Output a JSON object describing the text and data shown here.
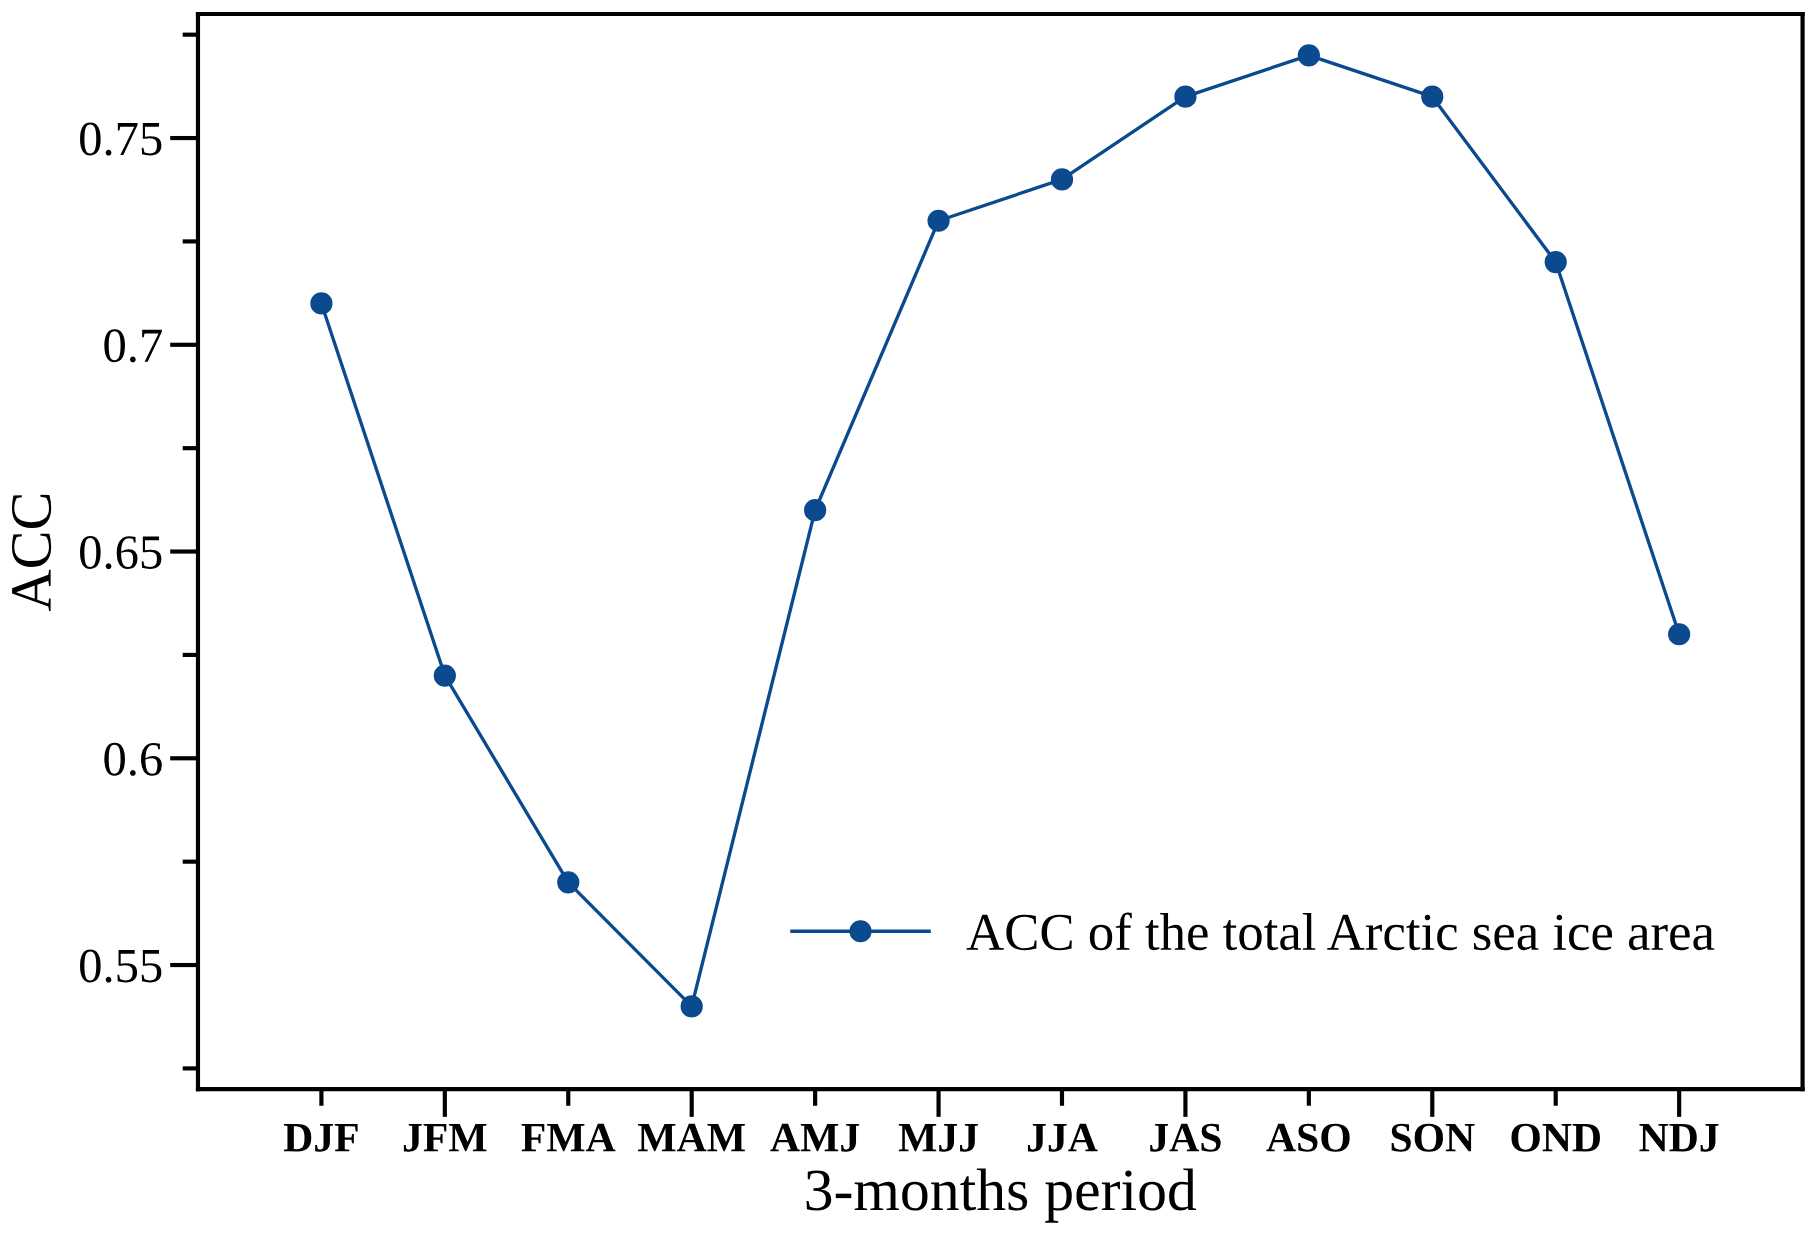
{
  "chart_data": {
    "type": "line",
    "xlabel": "3-months period",
    "ylabel": "ACC",
    "categories": [
      "DJF",
      "JFM",
      "FMA",
      "MAM",
      "AMJ",
      "MJJ",
      "JJA",
      "JAS",
      "ASO",
      "SON",
      "OND",
      "NDJ"
    ],
    "series": [
      {
        "name": "ACC of the total Arctic sea ice area",
        "color": "#0b4a8e",
        "values": [
          0.71,
          0.62,
          0.57,
          0.54,
          0.66,
          0.73,
          0.74,
          0.76,
          0.77,
          0.76,
          0.72,
          0.63
        ]
      }
    ],
    "ylim": [
      0.52,
      0.78
    ],
    "yticks": [
      0.55,
      0.6,
      0.65,
      0.7,
      0.75
    ],
    "marker": "circle",
    "line_style": "solid",
    "legend": "bottom right",
    "grid": false
  }
}
